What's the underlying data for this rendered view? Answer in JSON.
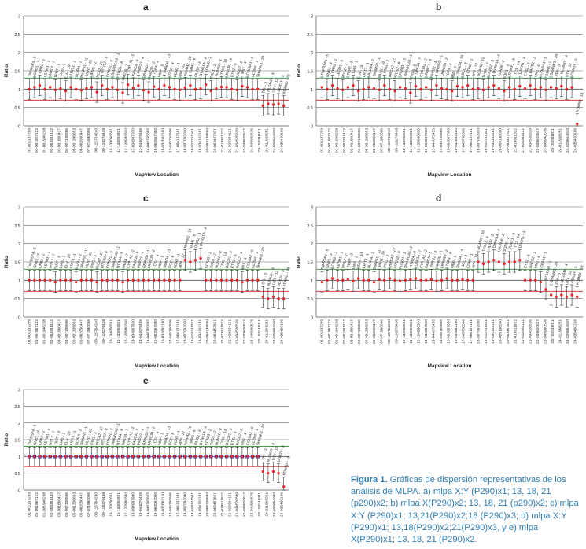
{
  "figure": {
    "caption_label": "Figura 1.",
    "caption_text": "Gráficas de dispersión representativas de los análisis de MLPA. a) mlpa X:Y (P290)x1; 13, 18, 21 (p290)x2; b) mlpa X(P290)x2; 13, 18, 21 (p290)x2; c) mlpa X:Y (P290)x1; 13,21(P290)x2;18 (P290)x3; d) mlpa X:Y (P290)x1; 13,18(P290)x2;21(P290)x3, y e) mlpa X(P290)x1; 13, 18, 21 (P290)x2."
  },
  "colors": {
    "point": "#e8262b",
    "errorbar": "#333333",
    "upper_line": "#2e8b2e",
    "lower_line": "#d22222",
    "panel_e_box": "#1f3fbf"
  },
  "chart_data": [
    {
      "panel": "a",
      "type": "scatter",
      "ylabel": "Ratio",
      "xlabel": "Mapview Location",
      "ylim": [
        0,
        3
      ],
      "yticks": [
        0,
        0.5,
        1,
        1.5,
        2,
        2.5,
        3
      ],
      "ytick_labels": [
        "0",
        "0.5",
        "1",
        "1.5",
        "2",
        "2.5",
        "3"
      ],
      "ref_lines": {
        "upper": 1.3,
        "lower": 0.7
      },
      "values": [
        1.0,
        1.05,
        1.1,
        1.0,
        1.05,
        0.98,
        1.02,
        0.95,
        1.05,
        1.0,
        0.97,
        1.02,
        1.05,
        0.92,
        1.1,
        1.0,
        1.05,
        0.98,
        0.9,
        1.12,
        1.03,
        1.1,
        0.97,
        0.92,
        1.07,
        1.0,
        1.1,
        1.05,
        1.0,
        0.98,
        1.04,
        1.1,
        1.0,
        1.02,
        1.12,
        0.95,
        1.02,
        1.06,
        1.05,
        1.0,
        0.98,
        1.08,
        1.05,
        1.0,
        1.0,
        0.55,
        0.6,
        0.58,
        0.6,
        0.55
      ],
      "probe_labels": [
        "TNFRSF4 - 5",
        "GNB1 - 3",
        "CRB2 - 2",
        "LETM1 - 3",
        "MYL2 - 7",
        "TERT - 3",
        "LIAS - 1",
        "ELN - 10",
        "LRIT3 - 1",
        "BLVRA - 2",
        "SNAP91 - 11",
        "MLH1 - 16",
        "IFNG - 2",
        "BRCA2 - 27",
        "MTUS2 - 8",
        "FOXO1 - 3",
        "SMARCA5 - 1",
        "HTR2A - 8",
        "UBE3A - 7",
        "CYP1A1 - 2",
        "FANCA - 5",
        "PMP22 - 4",
        "GRIN2D - 1",
        "LRRC30 - 2",
        "TCF4 - 4",
        "MBP - 5",
        "SMAD4 - 13",
        "DCC - 8",
        "CDH2 - 1",
        "APP - 12",
        "NCAM2 - 10",
        "TIAM1 - 6",
        "OLIG2 - 3",
        "DYRK1A - 4",
        "KCNJ6 - 2",
        "SOD1 - 2",
        "RUNX1 - 8",
        "TTC3 - 14",
        "DSCR1 - 3",
        "ETS2 - 6",
        "BACE2 - 2",
        "MX1 - 4",
        "COL6A1 - 9",
        "CLDN5 - 1",
        "SHANK3 - 20",
        "ZFY - 3",
        "NLGN4Y - 4",
        "UTY - 12",
        "DDX3Y - 5",
        "KDM5D - 18"
      ],
      "tick_labels": [
        "01-001137299",
        "01-001967122",
        "01-001946238",
        "02-053391432",
        "03-001860417",
        "04-007108596",
        "05-001336653",
        "06-062050447",
        "07-071980096",
        "08-115764240",
        "09-118276438",
        "10-133056591",
        "11-133054921",
        "12-120980330",
        "13-034997930",
        "13-044075455",
        "14-048765665",
        "15-062067050",
        "16-032682160",
        "17-045750506",
        "17-066137181",
        "18-007092030",
        "18-019741501",
        "19-034102181",
        "20-059138590",
        "20-063457821",
        "21-019611812",
        "21-028304121",
        "21-034526539",
        "22-039620617",
        "23-049990576",
        "23-152048011",
        "24-011968251",
        "24-026664040",
        "24-035460196"
      ]
    },
    {
      "panel": "b",
      "type": "scatter",
      "ylabel": "Ratio",
      "xlabel": "Mapview Location",
      "ylim": [
        0,
        3
      ],
      "yticks": [
        0,
        0.5,
        1,
        1.5,
        2,
        2.5,
        3
      ],
      "ytick_labels": [
        "0",
        "0.5",
        "1",
        "1.5",
        "2",
        "2.5",
        "3"
      ],
      "ref_lines": {
        "upper": 1.3,
        "lower": 0.7
      },
      "values": [
        1.05,
        1.0,
        1.1,
        1.02,
        0.98,
        1.05,
        1.1,
        0.95,
        1.0,
        1.05,
        1.02,
        0.98,
        1.1,
        1.0,
        0.95,
        1.05,
        1.02,
        0.9,
        1.08,
        1.0,
        1.05,
        0.98,
        1.1,
        1.02,
        1.0,
        0.95,
        1.08,
        1.05,
        1.1,
        1.0,
        1.02,
        0.98,
        1.05,
        1.1,
        1.02,
        0.95,
        1.05,
        1.0,
        1.08,
        1.02,
        1.1,
        1.0,
        1.05,
        0.98,
        1.05,
        1.02,
        1.08,
        1.0,
        1.05,
        0.05
      ],
      "probe_labels": [
        "TNFRSF4 - 5",
        "GNB1 - 3",
        "CRB2 - 2",
        "LETM1 - 3",
        "MYL2 - 7",
        "TERT - 3",
        "LIAS - 1",
        "ELN - 10",
        "LRIT3 - 1",
        "BLVRA - 2",
        "SNAP91 - 11",
        "MLH1 - 16",
        "IFNG - 2",
        "BRCA2 - 27",
        "MTUS2 - 8",
        "FOXO1 - 3",
        "SMARCA5 - 1",
        "HTR2A - 8",
        "UBE3A - 7",
        "CYP1A1 - 2",
        "FANCA - 5",
        "PMP22 - 4",
        "GRIN2D - 1",
        "LRRC30 - 2",
        "TCF4 - 4",
        "MBP - 5",
        "SMAD4 - 13",
        "DCC - 8",
        "CDH2 - 1",
        "APP - 12",
        "NCAM2 - 10",
        "TIAM1 - 6",
        "OLIG2 - 3",
        "DYRK1A - 4",
        "KCNJ6 - 2",
        "SOD1 - 2",
        "RUNX1 - 8",
        "TTC3 - 14",
        "DSCR1 - 3",
        "ETS2 - 6",
        "BACE2 - 2",
        "MX1 - 4",
        "COL6A1 - 9",
        "CLDN5 - 1",
        "SHANK3 - 20",
        "ZFY - 3",
        "NLGN4Y - 4",
        "UTY - 12",
        "DDX3Y - 5",
        "KDM5D - 18"
      ],
      "tick_labels": [
        "01-001137299",
        "01-001967122",
        "01-001946238",
        "02-053391432",
        "03-001860417",
        "04-007108596",
        "05-001336653",
        "06-062050447",
        "07-071980096",
        "08-115764240",
        "09-118276438",
        "10-133056591",
        "11-133054921",
        "12-120980330",
        "13-034997930",
        "13-044075455",
        "14-048765665",
        "15-062067050",
        "16-032682160",
        "17-045750506",
        "17-066137181",
        "18-007092030",
        "18-019741501",
        "19-034102181",
        "20-059138590",
        "20-063457821",
        "21-019611812",
        "21-028304121",
        "21-034526539",
        "22-039620617",
        "23-049990576",
        "23-152048011",
        "24-011968251",
        "24-026664040",
        "24-035460196"
      ]
    },
    {
      "panel": "c",
      "type": "scatter",
      "ylabel": "Ratio",
      "xlabel": "Mapview Location",
      "ylim": [
        0,
        3
      ],
      "yticks": [
        0,
        0.5,
        1,
        1.5,
        2,
        2.5,
        3
      ],
      "ytick_labels": [
        "0",
        "0.5",
        "1",
        "1.5",
        "2",
        "2.5",
        "3"
      ],
      "ref_lines": {
        "upper": 1.3,
        "lower": 0.7
      },
      "values": [
        1.0,
        1.0,
        1.0,
        1.0,
        1.0,
        0.95,
        1.0,
        1.0,
        1.0,
        0.95,
        1.0,
        1.0,
        1.0,
        0.95,
        1.0,
        1.0,
        1.0,
        1.0,
        0.95,
        1.0,
        1.0,
        1.0,
        1.0,
        1.0,
        1.0,
        1.0,
        1.0,
        1.0,
        1.0,
        1.0,
        1.55,
        1.5,
        1.55,
        1.6,
        1.0,
        1.0,
        1.0,
        1.0,
        1.0,
        1.0,
        1.0,
        0.95,
        1.0,
        1.0,
        1.0,
        0.55,
        0.5,
        0.55,
        0.5,
        0.5
      ],
      "probe_labels": [
        "TNFRSF4 - 5",
        "GNB1 - 3",
        "CRB2 - 2",
        "LETM1 - 3",
        "MYL2 - 7",
        "TERT - 3",
        "LIAS - 1",
        "ELN - 10",
        "LRIT3 - 1",
        "BLVRA - 2",
        "SNAP91 - 11",
        "MLH1 - 16",
        "IFNG - 2",
        "BRCA2 - 27",
        "MTUS2 - 8",
        "FOXO1 - 3",
        "SMARCA5 - 1",
        "HTR2A - 8",
        "UBE3A - 7",
        "CYP1A1 - 2",
        "FANCA - 5",
        "PMP22 - 4",
        "GRIN2D - 1",
        "LRRC30 - 2",
        "TCF4 - 4",
        "MBP - 5",
        "SMAD4 - 13",
        "DCC - 8",
        "CDH2 - 1",
        "APP - 12",
        "NCAM2 - 10",
        "TIAM1 - 6",
        "OLIG2 - 3",
        "DYRK1A - 4",
        "KCNJ6 - 2",
        "SOD1 - 2",
        "RUNX1 - 8",
        "TTC3 - 14",
        "DSCR1 - 3",
        "ETS2 - 6",
        "BACE2 - 2",
        "MX1 - 4",
        "COL6A1 - 9",
        "CLDN5 - 1",
        "SHANK3 - 20",
        "ZFY - 3",
        "NLGN4Y - 4",
        "UTY - 12",
        "DDX3Y - 5",
        "KDM5D - 18"
      ],
      "tick_labels": [
        "01-001137299",
        "01-001967122",
        "01-001946238",
        "02-053391432",
        "03-001860417",
        "04-007108596",
        "05-001336653",
        "06-062050447",
        "07-071980096",
        "08-115764240",
        "09-118276438",
        "10-133056591",
        "11-133054921",
        "12-120980330",
        "13-034997930",
        "13-044075455",
        "14-048765665",
        "15-062067050",
        "16-032682160",
        "17-045750506",
        "17-066137181",
        "18-007092030",
        "18-019741501",
        "19-034102181",
        "20-059138590",
        "20-063457821",
        "21-019611812",
        "21-028304121",
        "21-034526539",
        "22-039620617",
        "23-049990576",
        "23-152048011",
        "24-011968251",
        "24-026664040",
        "24-035460196"
      ]
    },
    {
      "panel": "d",
      "type": "scatter",
      "ylabel": "Ratio",
      "xlabel": "Mapview Location",
      "ylim": [
        0,
        3
      ],
      "yticks": [
        0,
        0.5,
        1,
        1.5,
        2,
        2.5,
        3
      ],
      "ytick_labels": [
        "0",
        "0.5",
        "1",
        "1.5",
        "2",
        "2.5",
        "3"
      ],
      "ref_lines": {
        "upper": 1.3,
        "lower": 0.7
      },
      "values": [
        0.95,
        1.0,
        1.05,
        1.0,
        1.0,
        1.02,
        0.98,
        1.05,
        1.0,
        1.0,
        0.95,
        1.02,
        1.0,
        1.05,
        1.0,
        0.98,
        1.0,
        1.02,
        1.05,
        1.0,
        1.0,
        1.02,
        0.98,
        1.0,
        1.05,
        1.0,
        1.0,
        1.02,
        1.0,
        1.0,
        1.5,
        1.45,
        1.5,
        1.55,
        1.5,
        1.45,
        1.5,
        1.5,
        1.55,
        1.0,
        1.0,
        1.0,
        0.95,
        0.75,
        0.6,
        0.55,
        0.6,
        0.55,
        0.6,
        0.55
      ],
      "probe_labels": [
        "TNFRSF4 - 5",
        "GNB1 - 3",
        "CRB2 - 2",
        "LETM1 - 3",
        "MYL2 - 7",
        "TERT - 3",
        "LIAS - 1",
        "ELN - 10",
        "LRIT3 - 1",
        "BLVRA - 2",
        "SNAP91 - 11",
        "MLH1 - 16",
        "IFNG - 2",
        "BRCA2 - 27",
        "MTUS2 - 8",
        "FOXO1 - 3",
        "SMARCA5 - 1",
        "HTR2A - 8",
        "UBE3A - 7",
        "CYP1A1 - 2",
        "FANCA - 5",
        "PMP22 - 4",
        "GRIN2D - 1",
        "LRRC30 - 2",
        "TCF4 - 4",
        "MBP - 5",
        "SMAD4 - 13",
        "DCC - 8",
        "CDH2 - 1",
        "APP - 12",
        "NCAM2 - 10",
        "TIAM1 - 6",
        "OLIG2 - 3",
        "DYRK1A - 4",
        "KCNJ6 - 2",
        "SOD1 - 2",
        "RUNX1 - 8",
        "TTC3 - 14",
        "DSCR1 - 3",
        "ETS2 - 6",
        "BACE2 - 2",
        "MX1 - 4",
        "COL6A1 - 9",
        "CLDN5 - 1",
        "SHANK3 - 20",
        "ZFY - 3",
        "NLGN4Y - 4",
        "UTY - 12",
        "DDX3Y - 5",
        "KDM5D - 18"
      ],
      "tick_labels": [
        "01-001137299",
        "01-001967122",
        "01-001946238",
        "02-053391432",
        "03-001860417",
        "04-007108596",
        "05-001336653",
        "06-062050447",
        "07-071980096",
        "08-115764240",
        "09-118276438",
        "10-133056591",
        "11-133054921",
        "12-120980330",
        "13-034997930",
        "13-044075455",
        "14-048765665",
        "15-062067050",
        "16-032682160",
        "17-045750506",
        "17-066137181",
        "18-007092030",
        "18-019741501",
        "19-034102181",
        "20-059138590",
        "20-063457821",
        "21-019611812",
        "21-028304121",
        "21-034526539",
        "22-039620617",
        "23-049990576",
        "23-152048011",
        "24-011968251",
        "24-026664040",
        "24-035460196"
      ]
    },
    {
      "panel": "e",
      "type": "scatter",
      "ylabel": "Ratio",
      "xlabel": "Mapview Location",
      "ylim": [
        0,
        3
      ],
      "yticks": [
        0,
        0.5,
        1,
        1.5,
        2,
        2.5,
        3
      ],
      "ytick_labels": [
        "0",
        "0.5",
        "1",
        "1.5",
        "2",
        "2.5",
        "3"
      ],
      "ref_lines": {
        "upper": 1.3,
        "lower": 0.7
      },
      "values": [
        1.0,
        1.0,
        1.0,
        1.0,
        1.0,
        1.0,
        1.0,
        1.0,
        1.0,
        1.0,
        1.0,
        1.0,
        1.0,
        1.0,
        1.0,
        1.0,
        1.0,
        1.0,
        1.0,
        1.0,
        1.0,
        1.0,
        1.0,
        1.0,
        1.0,
        1.0,
        1.0,
        1.0,
        1.0,
        1.0,
        1.0,
        1.0,
        1.0,
        1.0,
        1.0,
        1.0,
        1.0,
        1.0,
        1.0,
        1.0,
        1.0,
        1.0,
        1.0,
        1.0,
        1.0,
        0.55,
        0.5,
        0.55,
        0.5,
        0.1
      ],
      "probe_labels": [
        "TNFRSF4 - 5",
        "GNB1 - 3",
        "CRB2 - 2",
        "LETM1 - 3",
        "MYL2 - 7",
        "TERT - 3",
        "LIAS - 1",
        "ELN - 10",
        "LRIT3 - 1",
        "BLVRA - 2",
        "SNAP91 - 11",
        "MLH1 - 16",
        "IFNG - 2",
        "BRCA2 - 27",
        "MTUS2 - 8",
        "FOXO1 - 3",
        "SMARCA5 - 1",
        "HTR2A - 8",
        "UBE3A - 7",
        "CYP1A1 - 2",
        "FANCA - 5",
        "PMP22 - 4",
        "GRIN2D - 1",
        "LRRC30 - 2",
        "TCF4 - 4",
        "MBP - 5",
        "SMAD4 - 13",
        "DCC - 8",
        "CDH2 - 1",
        "APP - 12",
        "NCAM2 - 10",
        "TIAM1 - 6",
        "OLIG2 - 3",
        "DYRK1A - 4",
        "KCNJ6 - 2",
        "SOD1 - 2",
        "RUNX1 - 8",
        "TTC3 - 14",
        "DSCR1 - 3",
        "ETS2 - 6",
        "BACE2 - 2",
        "MX1 - 4",
        "COL6A1 - 9",
        "CLDN5 - 1",
        "SHANK3 - 20",
        "ZFY - 3",
        "NLGN4Y - 4",
        "UTY - 12",
        "DDX3Y - 5",
        "KDM5D - 18"
      ],
      "tick_labels": [
        "01-001137299",
        "01-001967122",
        "01-001946238",
        "02-053391432",
        "03-001860417",
        "04-007108596",
        "05-001336653",
        "06-062050447",
        "07-071980096",
        "08-115764240",
        "09-118276438",
        "10-133056591",
        "11-133054921",
        "12-120980330",
        "13-034997930",
        "13-044075455",
        "14-048765665",
        "15-062067050",
        "16-032682160",
        "17-045750506",
        "17-066137181",
        "18-007092030",
        "18-019741501",
        "19-034102181",
        "20-059138590",
        "20-063457821",
        "21-019611812",
        "21-028304121",
        "21-034526539",
        "22-039620617",
        "23-049990576",
        "23-152048011",
        "24-011968251",
        "24-026664040",
        "24-035460196"
      ]
    }
  ]
}
